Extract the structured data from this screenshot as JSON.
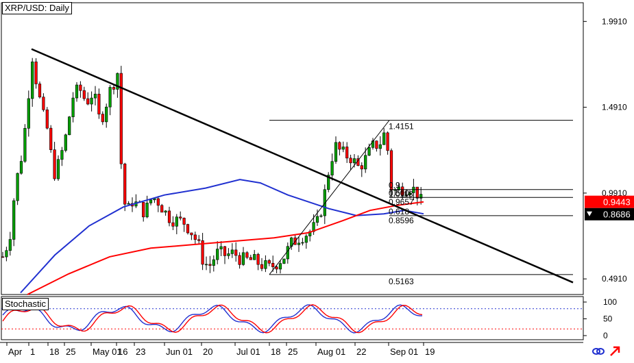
{
  "window": {
    "title": "XRP/USD: Daily"
  },
  "indicator": {
    "title": "Stochastic"
  },
  "colors": {
    "bull": "#00a000",
    "bear": "#ff0000",
    "trendline": "#000000",
    "ma_fast": "#2030d0",
    "ma_slow": "#ff0000",
    "stoch_k": "#2030d0",
    "stoch_d": "#ff0000",
    "tag_red": "#ff0000",
    "tag_black": "#000000"
  },
  "icons": [
    "link-icon",
    "arrow-icon"
  ],
  "chart_data": {
    "type": "candlestick",
    "symbol": "XRP/USD",
    "timeframe": "Daily",
    "y_axis": {
      "ticks": [
        "1.9910",
        "1.4910",
        "0.9910",
        "0.4910"
      ],
      "range": [
        0.4,
        2.1
      ]
    },
    "x_axis": {
      "ticks": [
        "Apr",
        "1",
        "18",
        "25",
        "May 01",
        "16",
        "23",
        "Jun 01",
        "20",
        "Jul 01",
        "18",
        "25",
        "Aug 01",
        "22",
        "Sep 01",
        "19"
      ]
    },
    "price_tags": [
      {
        "label": "0.9443",
        "style": "red"
      },
      {
        "label": "0.8686",
        "style": "black"
      }
    ],
    "fibonacci": {
      "high": 1.4151,
      "low": 0.5163,
      "levels": [
        {
          "ratio": "0.500",
          "value": 0.9657
        },
        {
          "ratio": "0.618",
          "value": 0.8596
        }
      ],
      "labels": [
        "1.4151",
        "0.9",
        "1.0118",
        "0.500",
        "0.9657",
        "0.618",
        "0.8596",
        "0.5163"
      ]
    },
    "trendline": {
      "start": [
        "Apr",
        1.83
      ],
      "end": [
        "Sep 19+",
        0.47
      ]
    },
    "stochastic": {
      "ticks": [
        "100",
        "50",
        "0"
      ],
      "levels": [
        80,
        20
      ]
    }
  }
}
